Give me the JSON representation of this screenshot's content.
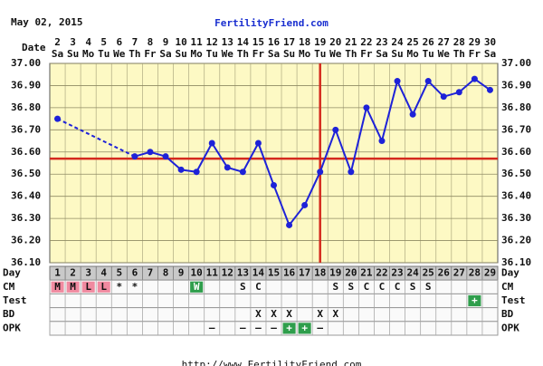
{
  "chart_data": {
    "type": "line",
    "header_date": "May 02, 2015",
    "site": "FertilityFriend.com",
    "footer": "http://www.FertilityFriend.com",
    "date_label": "Date",
    "day_label": "Day",
    "dates": [
      2,
      3,
      4,
      5,
      6,
      7,
      8,
      9,
      10,
      11,
      12,
      13,
      14,
      15,
      16,
      17,
      18,
      19,
      20,
      21,
      22,
      23,
      24,
      25,
      26,
      27,
      28,
      29,
      30
    ],
    "weekdays": [
      "Sa",
      "Su",
      "Mo",
      "Tu",
      "We",
      "Th",
      "Fr",
      "Sa",
      "Su",
      "Mo",
      "Tu",
      "We",
      "Th",
      "Fr",
      "Sa",
      "Su",
      "Mo",
      "Tu",
      "We",
      "Th",
      "Fr",
      "Sa",
      "Su",
      "Mo",
      "Tu",
      "We",
      "Th",
      "Fr",
      "Sa"
    ],
    "days": [
      1,
      2,
      3,
      4,
      5,
      6,
      7,
      8,
      9,
      10,
      11,
      12,
      13,
      14,
      15,
      16,
      17,
      18,
      19,
      20,
      21,
      22,
      23,
      24,
      25,
      26,
      27,
      28,
      29
    ],
    "values": [
      36.75,
      null,
      null,
      null,
      null,
      36.58,
      36.6,
      36.58,
      36.52,
      36.51,
      36.64,
      36.53,
      36.51,
      36.64,
      36.45,
      36.27,
      36.36,
      36.51,
      36.7,
      36.51,
      36.8,
      36.65,
      36.92,
      36.77,
      36.92,
      36.85,
      36.87,
      36.93,
      36.88
    ],
    "color": "#1e22d8",
    "ylim": [
      36.1,
      37.0
    ],
    "yticks": [
      {
        "value": 37.0,
        "label": "37.00"
      },
      {
        "value": 36.9,
        "label": "36.90"
      },
      {
        "value": 36.8,
        "label": "36.80"
      },
      {
        "value": 36.7,
        "label": "36.70"
      },
      {
        "value": 36.6,
        "label": "36.60"
      },
      {
        "value": 36.5,
        "label": "36.50"
      },
      {
        "value": 36.4,
        "label": "36.40"
      },
      {
        "value": 36.3,
        "label": "36.30"
      },
      {
        "value": 36.2,
        "label": "36.20"
      },
      {
        "value": 36.1,
        "label": "36.10"
      }
    ],
    "grid": true,
    "coverline": 36.57,
    "ovulation_day": 18,
    "marker_color": "#d42a1e",
    "rows": [
      {
        "label": "CM",
        "cells": [
          "M",
          "M",
          "L",
          "L",
          "*",
          "*",
          null,
          null,
          null,
          "W",
          null,
          null,
          "S",
          "C",
          null,
          null,
          null,
          null,
          "S",
          "S",
          "C",
          "C",
          "C",
          "S",
          "S",
          null,
          null,
          null,
          null
        ]
      },
      {
        "label": "Test",
        "cells": [
          null,
          null,
          null,
          null,
          null,
          null,
          null,
          null,
          null,
          null,
          null,
          null,
          null,
          null,
          null,
          null,
          null,
          null,
          null,
          null,
          null,
          null,
          null,
          null,
          null,
          null,
          null,
          "+",
          null
        ]
      },
      {
        "label": "BD",
        "cells": [
          null,
          null,
          null,
          null,
          null,
          null,
          null,
          null,
          null,
          null,
          null,
          null,
          null,
          "X",
          "X",
          "X",
          null,
          "X",
          "X",
          null,
          null,
          null,
          null,
          null,
          null,
          null,
          null,
          null,
          null
        ]
      },
      {
        "label": "OPK",
        "cells": [
          null,
          null,
          null,
          null,
          null,
          null,
          null,
          null,
          null,
          null,
          "–",
          null,
          "–",
          "–",
          "–",
          "+",
          "+",
          "–",
          null,
          null,
          null,
          null,
          null,
          null,
          null,
          null,
          null,
          null,
          null
        ]
      }
    ],
    "code_colors": {
      "M": "#f08aa0",
      "L": "#f08aa0",
      "W": "#2f9e4c",
      "+": "#2f9e4c"
    }
  }
}
